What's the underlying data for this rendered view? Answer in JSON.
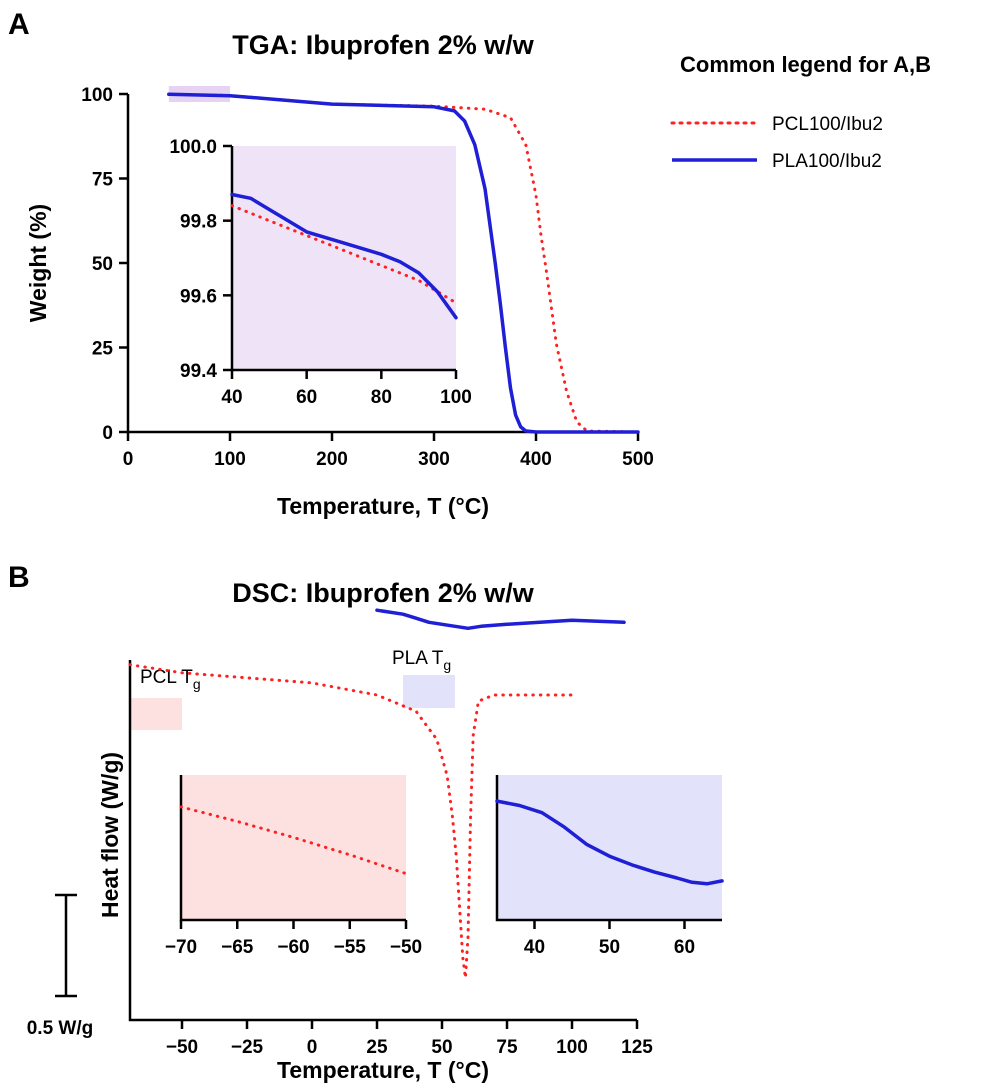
{
  "panel_labels": {
    "a": "A",
    "b": "B"
  },
  "legend": {
    "title": "Common legend for A,B",
    "items": [
      {
        "label": "PCL100/Ibu2",
        "color": "#ff2020",
        "style": "dotted"
      },
      {
        "label": "PLA100/Ibu2",
        "color": "#1f1fd6",
        "style": "solid"
      }
    ]
  },
  "colors": {
    "pcl": "#ff2020",
    "pla": "#1f1fd6",
    "tga_inset_bg": "#efe3f8",
    "tga_highlight": "#e6d2f2",
    "dsc_pcl_bg": "#fde0e0",
    "dsc_pla_bg": "#e2e2fb"
  },
  "chart_data": [
    {
      "id": "tga-main",
      "type": "line",
      "title": "TGA: Ibuprofen 2% w/w",
      "xlabel": "Temperature, T (°C)",
      "ylabel": "Weight (%)",
      "xlim": [
        0,
        500
      ],
      "ylim": [
        0,
        100
      ],
      "xticks": [
        0,
        100,
        200,
        300,
        400,
        500
      ],
      "yticks": [
        0,
        25,
        50,
        75,
        100
      ],
      "highlight_x": [
        40,
        100
      ],
      "series": [
        {
          "name": "PCL100/Ibu2",
          "x": [
            40,
            100,
            200,
            300,
            350,
            375,
            390,
            400,
            405,
            410,
            415,
            420,
            430,
            440,
            450,
            500
          ],
          "y": [
            99.9,
            99.6,
            97,
            96.4,
            95.5,
            93,
            85,
            70,
            58,
            48,
            37,
            26,
            12,
            3,
            0.3,
            0
          ]
        },
        {
          "name": "PLA100/Ibu2",
          "x": [
            40,
            100,
            200,
            300,
            320,
            330,
            340,
            350,
            360,
            365,
            370,
            375,
            380,
            385,
            390,
            400,
            500
          ],
          "y": [
            99.9,
            99.5,
            97,
            96.2,
            95,
            92,
            85,
            72,
            50,
            38,
            25,
            13,
            5,
            1.5,
            0.3,
            0,
            0
          ]
        }
      ]
    },
    {
      "id": "tga-inset",
      "type": "line",
      "xlim": [
        40,
        100
      ],
      "ylim": [
        99.4,
        100.0
      ],
      "xticks": [
        40,
        60,
        80,
        100
      ],
      "yticks": [
        99.4,
        99.6,
        99.8,
        100.0
      ],
      "ytick_labels": [
        "99.4",
        "99.6",
        "99.8",
        "100.0"
      ],
      "series": [
        {
          "name": "PCL100/Ibu2",
          "x": [
            40,
            50,
            60,
            70,
            80,
            90,
            100
          ],
          "y": [
            99.84,
            99.8,
            99.76,
            99.72,
            99.68,
            99.64,
            99.58
          ]
        },
        {
          "name": "PLA100/Ibu2",
          "x": [
            40,
            45,
            50,
            60,
            70,
            80,
            85,
            90,
            95,
            100
          ],
          "y": [
            99.87,
            99.86,
            99.83,
            99.77,
            99.74,
            99.71,
            99.69,
            99.66,
            99.61,
            99.54
          ]
        }
      ]
    },
    {
      "id": "dsc-main",
      "type": "line",
      "title": "DSC: Ibuprofen 2% w/w",
      "xlabel": "Temperature, T (°C)",
      "ylabel": "Heat flow (W/g)",
      "xlim": [
        -70,
        125
      ],
      "xticks": [
        -50,
        -25,
        0,
        25,
        50,
        75,
        100,
        125
      ],
      "scale_bar": {
        "label": "0.5 W/g",
        "value": 0.5
      },
      "annotations": [
        {
          "text": "PCL T",
          "sub": "g",
          "x_range": [
            -70,
            -50
          ]
        },
        {
          "text": "PLA T",
          "sub": "g",
          "x_range": [
            35,
            55
          ]
        }
      ],
      "series": [
        {
          "name": "PCL100/Ibu2",
          "x": [
            -70,
            -50,
            0,
            25,
            40,
            48,
            52,
            54,
            55.5,
            57,
            58,
            59,
            60,
            61,
            62,
            64,
            70,
            100
          ],
          "y": [
            1.65,
            1.61,
            1.56,
            1.5,
            1.42,
            1.28,
            1.1,
            0.9,
            0.7,
            0.4,
            0.2,
            0.1,
            0.3,
            0.9,
            1.3,
            1.47,
            1.5,
            1.5
          ]
        },
        {
          "name": "PLA100/Ibu2",
          "x": [
            25,
            35,
            40,
            45,
            50,
            55,
            60,
            65,
            75,
            100,
            120
          ],
          "y": [
            1.92,
            1.9,
            1.88,
            1.86,
            1.85,
            1.84,
            1.83,
            1.84,
            1.85,
            1.87,
            1.86
          ]
        }
      ]
    },
    {
      "id": "dsc-inset-pcl",
      "type": "line",
      "xlim": [
        -70,
        -50
      ],
      "xticks": [
        -70,
        -65,
        -60,
        -55,
        -50
      ],
      "series": [
        {
          "name": "PCL100/Ibu2",
          "x": [
            -70,
            -65,
            -60,
            -55,
            -50
          ],
          "y": [
            0.78,
            0.68,
            0.57,
            0.45,
            0.32
          ]
        }
      ]
    },
    {
      "id": "dsc-inset-pla",
      "type": "line",
      "xlim": [
        35,
        65
      ],
      "xticks": [
        40,
        50,
        60
      ],
      "series": [
        {
          "name": "PLA100/Ibu2",
          "x": [
            35,
            38,
            41,
            44,
            47,
            50,
            53,
            56,
            59,
            61,
            63,
            65
          ],
          "y": [
            0.82,
            0.79,
            0.74,
            0.64,
            0.52,
            0.44,
            0.38,
            0.33,
            0.29,
            0.26,
            0.25,
            0.27
          ]
        }
      ]
    }
  ]
}
